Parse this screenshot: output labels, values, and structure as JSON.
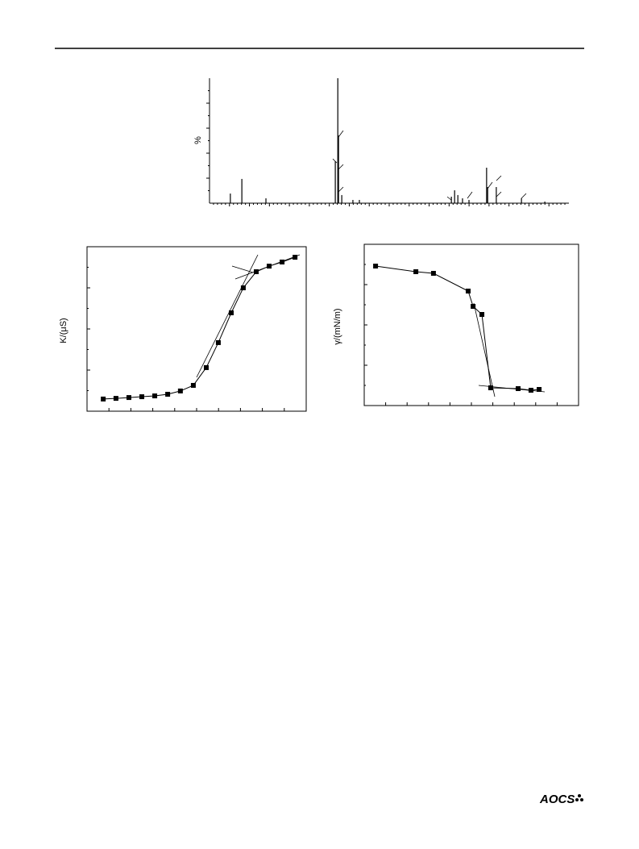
{
  "chart_data": [
    {
      "type": "bar",
      "y_label": "%",
      "xlim": [
        0,
        100
      ],
      "ylim": [
        0,
        100
      ],
      "x": [
        5.8,
        9.0,
        15.7,
        35.0,
        35.7,
        35.9,
        36.8,
        39.9,
        41.7,
        67.3,
        68.2,
        69.1,
        70.4,
        72.2,
        77.1,
        77.4,
        79.8,
        86.8,
        93.3
      ],
      "values": [
        7.7,
        19.4,
        3.9,
        33.5,
        100,
        54.2,
        6.5,
        2.6,
        2.6,
        5.2,
        10.3,
        6.5,
        3.9,
        2.6,
        28.4,
        12.9,
        12.9,
        3.9,
        1.3
      ],
      "color": "#000000"
    },
    {
      "type": "line",
      "y_label": "K/(μS)",
      "xlim": [
        0,
        100
      ],
      "ylim": [
        0,
        100
      ],
      "x": [
        7.4,
        13.2,
        19.1,
        25.0,
        30.9,
        36.8,
        42.6,
        48.5,
        54.4,
        59.9,
        65.8,
        71.3,
        77.2,
        83.1,
        89.0,
        94.9
      ],
      "values": [
        7.4,
        7.8,
        8.3,
        8.8,
        9.3,
        10.3,
        12.3,
        15.7,
        26.5,
        41.7,
        59.8,
        75.0,
        84.8,
        88.2,
        90.7,
        93.6
      ],
      "color": "#000000"
    },
    {
      "type": "line",
      "y_label": "γ/(mN/m)",
      "xlim": [
        0,
        100
      ],
      "ylim": [
        0,
        100
      ],
      "x": [
        5.3,
        24.1,
        32.3,
        48.5,
        50.8,
        54.9,
        59.0,
        71.8,
        77.8,
        81.6
      ],
      "values": [
        86.5,
        83,
        82,
        71,
        61.5,
        56.5,
        11,
        10.5,
        9.5,
        10
      ],
      "color": "#000000"
    }
  ],
  "footer": {
    "logo": "AOCS"
  }
}
